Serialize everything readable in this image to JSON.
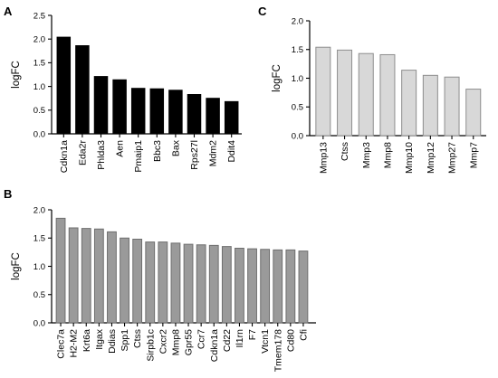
{
  "figure": {
    "panel_letters": [
      "A",
      "B",
      "C"
    ]
  },
  "chart_data": [
    {
      "panel": "A",
      "type": "bar",
      "categories": [
        "Cdkn1a",
        "Eda2r",
        "Phlda3",
        "Aen",
        "Pmaip1",
        "Bbc3",
        "Bax",
        "Rps27l",
        "Mdm2",
        "Ddit4"
      ],
      "values": [
        2.04,
        1.86,
        1.21,
        1.14,
        0.96,
        0.95,
        0.92,
        0.83,
        0.75,
        0.68
      ],
      "ylabel": "logFC",
      "xlabel": "",
      "ylim": [
        0,
        2.5
      ],
      "yticks": [
        "0.0",
        "0.5",
        "1.0",
        "1.5",
        "2.0",
        "2.5"
      ],
      "bar_fill": "#000000",
      "bar_stroke": "#000000",
      "grid": false
    },
    {
      "panel": "B",
      "type": "bar",
      "categories": [
        "Clec7a",
        "H2-M2",
        "Krt6a",
        "Itgax",
        "Ddias",
        "Spp1",
        "Ctss",
        "Sirpb1c",
        "Cxcr2",
        "Mmp8",
        "Gpr55",
        "Ccr7",
        "Cdkn1a",
        "Cd22",
        "Il1rn",
        "F7",
        "Vtcn1",
        "Tmem178",
        "Cd80",
        "Cfi"
      ],
      "values": [
        1.85,
        1.68,
        1.67,
        1.66,
        1.61,
        1.5,
        1.48,
        1.43,
        1.43,
        1.41,
        1.39,
        1.38,
        1.37,
        1.35,
        1.32,
        1.31,
        1.3,
        1.29,
        1.29,
        1.27
      ],
      "ylabel": "logFC",
      "xlabel": "",
      "ylim": [
        0,
        2.0
      ],
      "yticks": [
        "0.0",
        "0.5",
        "1.0",
        "1.5",
        "2.0"
      ],
      "bar_fill": "#9a9a9a",
      "bar_stroke": "#6e6e6e",
      "grid": false
    },
    {
      "panel": "C",
      "type": "bar",
      "categories": [
        "Mmp13",
        "Ctss",
        "Mmp3",
        "Mmp8",
        "Mmp10",
        "Mmp12",
        "Mmp27",
        "Mmp7"
      ],
      "values": [
        1.54,
        1.49,
        1.43,
        1.41,
        1.14,
        1.05,
        1.02,
        0.81
      ],
      "ylabel": "logFC",
      "xlabel": "",
      "ylim": [
        0,
        2.0
      ],
      "yticks": [
        "0.0",
        "0.5",
        "1.0",
        "1.5",
        "2.0"
      ],
      "bar_fill": "#d8d8d8",
      "bar_stroke": "#8e8e8e",
      "grid": false
    }
  ]
}
